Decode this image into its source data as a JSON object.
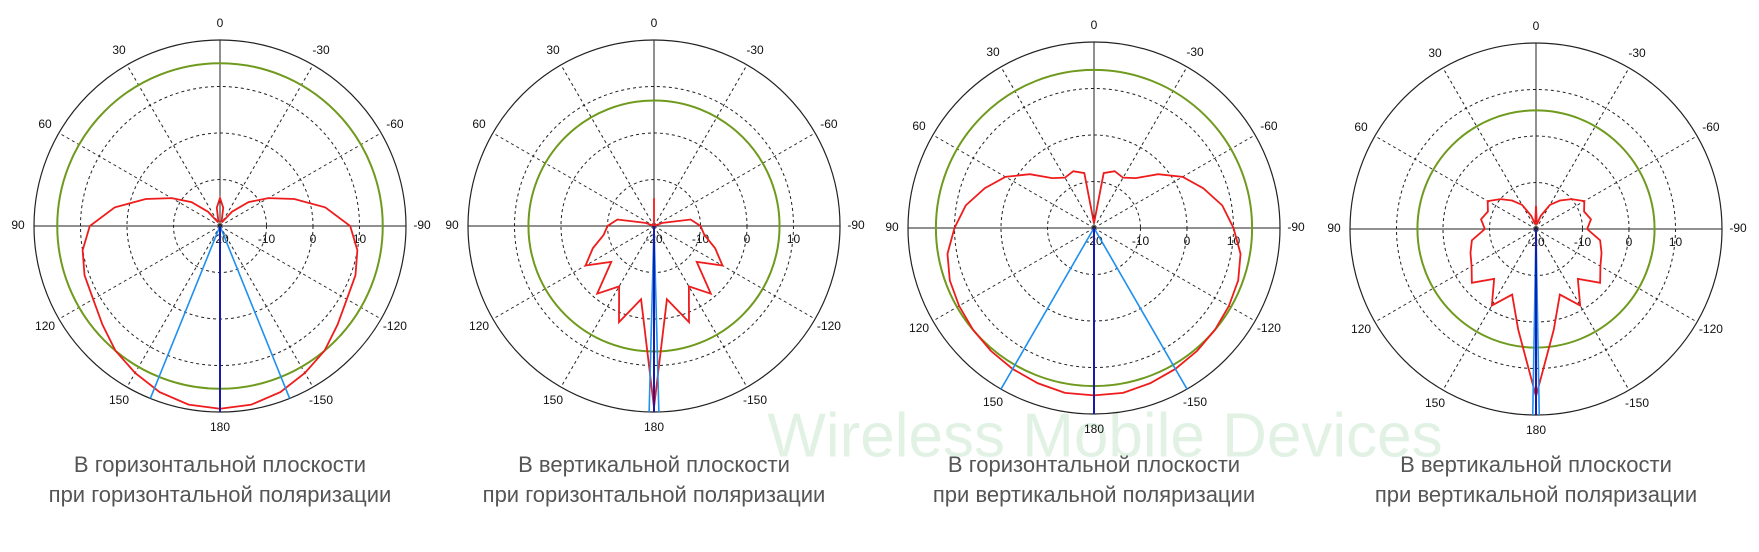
{
  "watermark_text": "Wireless Mobile Devices",
  "chart_data": [
    {
      "type": "polar",
      "caption": [
        "В горизонтальной плоскости",
        "при горизонтальной поляризации"
      ],
      "rlim": [
        -20,
        20
      ],
      "rticks": [
        -20,
        -10,
        0,
        10
      ],
      "thetaticks": [
        0,
        30,
        60,
        90,
        120,
        150,
        180,
        -150,
        -120,
        -90,
        -60,
        -30
      ],
      "theta": [
        -170,
        -160,
        -150,
        -140,
        -130,
        -120,
        -110,
        -100,
        -90,
        -80,
        -70,
        -60,
        -50,
        -40,
        -30,
        -20,
        -10,
        0,
        10,
        20,
        30,
        40,
        50,
        60,
        70,
        80,
        90,
        100,
        110,
        120,
        130,
        140,
        150,
        160,
        170,
        180
      ],
      "values": [
        19,
        18,
        16.5,
        15,
        13,
        11.5,
        11,
        10,
        8,
        3,
        -3,
        -8,
        -12,
        -16,
        -19,
        -19,
        -16,
        -14,
        -16,
        -19,
        -19,
        -16,
        -12,
        -8,
        -3,
        3,
        8,
        10,
        11,
        11.5,
        13,
        15,
        16.5,
        18,
        19,
        19.3
      ],
      "color": "#ee1c1c",
      "reference_level": 15,
      "reference_color": "#6f9a1e",
      "markers": [
        158,
        -158
      ],
      "marker_color": "#1e90f0",
      "main_direction": 180,
      "main_color": "#1a1aa8"
    },
    {
      "type": "polar",
      "caption": [
        "В вертикальной плоскости",
        "при горизонтальной поляризации"
      ],
      "rlim": [
        -20,
        20
      ],
      "rticks": [
        -20,
        -10,
        0,
        10
      ],
      "thetaticks": [
        0,
        30,
        60,
        90,
        120,
        150,
        180,
        -150,
        -120,
        -90,
        -60,
        -30
      ],
      "theta": [
        -170,
        -160,
        -150,
        -140,
        -130,
        -120,
        -110,
        -100,
        -90,
        -80,
        -70,
        -60,
        -50,
        -40,
        -30,
        -20,
        -10,
        0,
        10,
        20,
        30,
        40,
        50,
        60,
        70,
        80,
        90,
        100,
        110,
        120,
        130,
        140,
        150,
        160,
        170,
        180
      ],
      "values": [
        -4,
        2,
        -5,
        -1,
        -8,
        -3,
        -6,
        -9,
        -10,
        -12,
        -18,
        -20,
        -20,
        -20,
        -20,
        -20,
        -20,
        -14,
        -20,
        -20,
        -20,
        -20,
        -20,
        -20,
        -18,
        -12,
        -10,
        -9,
        -6,
        -3,
        -8,
        -1,
        -5,
        2,
        -4,
        19
      ],
      "color": "#ee1c1c",
      "reference_level": 7,
      "reference_color": "#6f9a1e",
      "markers": [
        178.5,
        -178.5
      ],
      "marker_color": "#1e90f0",
      "main_direction": 180,
      "main_color": "#1a1aa8"
    },
    {
      "type": "polar",
      "caption": [
        "В горизонтальной плоскости",
        "при вертикальной поляризации"
      ],
      "rlim": [
        -20,
        20
      ],
      "rticks": [
        -20,
        -10,
        0,
        10
      ],
      "thetaticks": [
        0,
        30,
        60,
        90,
        120,
        150,
        180,
        -150,
        -120,
        -90,
        -60,
        -30
      ],
      "theta": [
        -170,
        -160,
        -150,
        -140,
        -130,
        -120,
        -110,
        -100,
        -90,
        -80,
        -70,
        -60,
        -50,
        -40,
        -30,
        -20,
        -10,
        0,
        10,
        20,
        30,
        40,
        50,
        60,
        70,
        80,
        90,
        100,
        110,
        120,
        130,
        140,
        150,
        160,
        170,
        180
      ],
      "values": [
        16,
        15.5,
        15,
        14.5,
        14,
        13.5,
        13,
        12,
        10,
        8,
        5,
        2,
        -2,
        -6,
        -7.5,
        -7,
        -8,
        -19,
        -8,
        -7,
        -7.5,
        -6,
        -2,
        2,
        5,
        8,
        10,
        12,
        13,
        13.5,
        14,
        14.5,
        15,
        15.5,
        16,
        16
      ],
      "color": "#ee1c1c",
      "reference_level": 14,
      "reference_color": "#6f9a1e",
      "markers": [
        150,
        -150
      ],
      "marker_color": "#1e90f0",
      "main_direction": 180,
      "main_color": "#1a1aa8"
    },
    {
      "type": "polar",
      "caption": [
        "В вертикальной плоскости",
        "при вертикальной поляризации"
      ],
      "rlim": [
        -20,
        20
      ],
      "rticks": [
        -20,
        -10,
        0,
        10
      ],
      "thetaticks": [
        0,
        30,
        60,
        90,
        120,
        150,
        180,
        -150,
        -120,
        -90,
        -60,
        -30
      ],
      "theta": [
        -170,
        -160,
        -150,
        -140,
        -130,
        -120,
        -110,
        -100,
        -90,
        -80,
        -70,
        -60,
        -50,
        -40,
        -30,
        -20,
        -10,
        0,
        10,
        20,
        30,
        40,
        50,
        60,
        70,
        80,
        90,
        100,
        110,
        120,
        130,
        140,
        150,
        160,
        170,
        180
      ],
      "values": [
        2,
        -5,
        -1,
        -6,
        -2,
        -4,
        -5,
        -6,
        -9,
        -8,
        -9,
        -8,
        -10,
        -12,
        -14,
        -17,
        -19,
        -15,
        -19,
        -17,
        -14,
        -12,
        -10,
        -8,
        -9,
        -8,
        -9,
        -6,
        -5,
        -4,
        -2,
        -6,
        -1,
        -5,
        2,
        16
      ],
      "color": "#ee1c1c",
      "reference_level": 5.5,
      "reference_color": "#6f9a1e",
      "markers": [
        179,
        -179
      ],
      "marker_color": "#1e90f0",
      "main_direction": 180,
      "main_color": "#1a1aa8"
    }
  ]
}
